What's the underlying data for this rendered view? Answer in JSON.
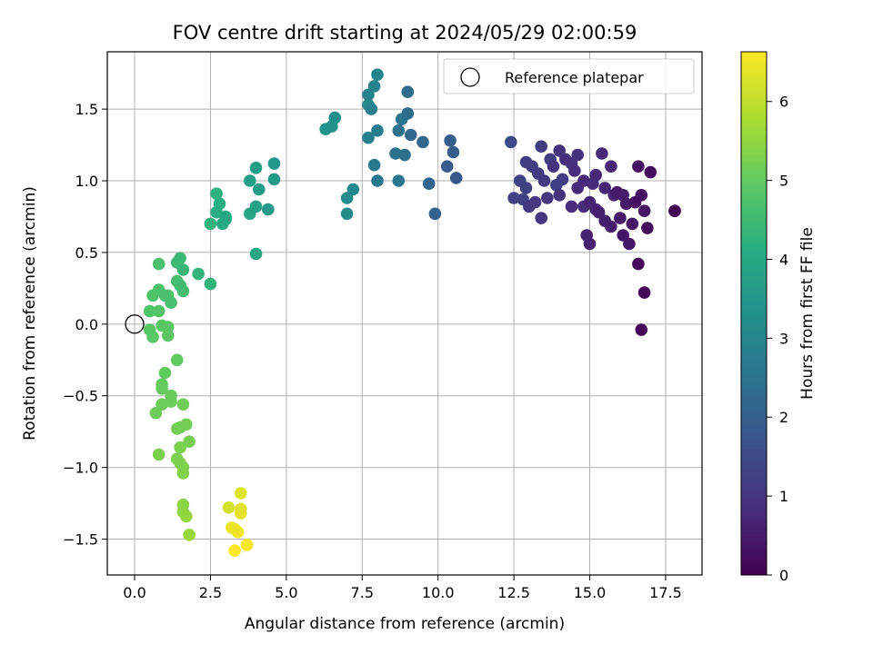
{
  "chart_data": {
    "type": "scatter",
    "title": "FOV centre drift starting at 2024/05/29 02:00:59",
    "xlabel": "Angular distance from reference (arcmin)",
    "ylabel": "Rotation from reference (arcmin)",
    "xlim": [
      -0.9,
      18.7
    ],
    "ylim": [
      -1.75,
      1.9
    ],
    "grid": true,
    "x_ticks": [
      "0.0",
      "2.5",
      "5.0",
      "7.5",
      "10.0",
      "12.5",
      "15.0",
      "17.5"
    ],
    "y_ticks": [
      "−1.5",
      "−1.0",
      "−0.5",
      "0.0",
      "0.5",
      "1.0",
      "1.5"
    ],
    "colormap": "viridis",
    "colorbar": {
      "label": "Hours from first FF file",
      "range": [
        0,
        6.63
      ],
      "ticks": [
        "0",
        "1",
        "2",
        "3",
        "4",
        "5",
        "6"
      ]
    },
    "legend": {
      "position": "top-right",
      "entries": [
        {
          "label": "Reference platepar",
          "marker": "open-circle"
        }
      ]
    },
    "reference_point": {
      "x": 0.0,
      "y": 0.0
    },
    "points": [
      {
        "x": 17.8,
        "y": 0.79,
        "h": 0.0
      },
      {
        "x": 17.8,
        "y": 0.79,
        "h": 0.05
      },
      {
        "x": 16.8,
        "y": 0.22,
        "h": 0.08
      },
      {
        "x": 16.7,
        "y": -0.04,
        "h": 0.12
      },
      {
        "x": 16.6,
        "y": 0.42,
        "h": 0.15
      },
      {
        "x": 16.9,
        "y": 0.67,
        "h": 0.2
      },
      {
        "x": 17.0,
        "y": 1.06,
        "h": 0.22
      },
      {
        "x": 16.6,
        "y": 1.1,
        "h": 0.25
      },
      {
        "x": 16.7,
        "y": 0.9,
        "h": 0.27
      },
      {
        "x": 16.5,
        "y": 0.85,
        "h": 0.3
      },
      {
        "x": 16.8,
        "y": 0.79,
        "h": 0.33
      },
      {
        "x": 16.4,
        "y": 0.7,
        "h": 0.35
      },
      {
        "x": 16.1,
        "y": 0.62,
        "h": 0.38
      },
      {
        "x": 16.3,
        "y": 0.56,
        "h": 0.4
      },
      {
        "x": 16.0,
        "y": 0.74,
        "h": 0.42
      },
      {
        "x": 16.2,
        "y": 0.84,
        "h": 0.45
      },
      {
        "x": 15.9,
        "y": 0.92,
        "h": 0.47
      },
      {
        "x": 16.1,
        "y": 0.9,
        "h": 0.5
      },
      {
        "x": 15.7,
        "y": 0.68,
        "h": 0.52
      },
      {
        "x": 15.5,
        "y": 0.72,
        "h": 0.55
      },
      {
        "x": 15.3,
        "y": 0.78,
        "h": 0.57
      },
      {
        "x": 14.9,
        "y": 0.62,
        "h": 0.6
      },
      {
        "x": 15.0,
        "y": 0.56,
        "h": 0.62
      },
      {
        "x": 15.2,
        "y": 0.8,
        "h": 0.64
      },
      {
        "x": 15.0,
        "y": 0.85,
        "h": 0.66
      },
      {
        "x": 15.8,
        "y": 0.9,
        "h": 0.68
      },
      {
        "x": 15.5,
        "y": 0.95,
        "h": 0.7
      },
      {
        "x": 15.2,
        "y": 1.04,
        "h": 0.72
      },
      {
        "x": 15.7,
        "y": 1.1,
        "h": 0.74
      },
      {
        "x": 15.4,
        "y": 1.19,
        "h": 0.76
      },
      {
        "x": 14.8,
        "y": 1.0,
        "h": 0.78
      },
      {
        "x": 14.6,
        "y": 0.95,
        "h": 0.8
      },
      {
        "x": 14.4,
        "y": 0.82,
        "h": 0.82
      },
      {
        "x": 14.8,
        "y": 0.82,
        "h": 0.84
      },
      {
        "x": 15.1,
        "y": 0.98,
        "h": 0.86
      },
      {
        "x": 14.5,
        "y": 1.07,
        "h": 0.88
      },
      {
        "x": 14.2,
        "y": 1.15,
        "h": 0.9
      },
      {
        "x": 14.6,
        "y": 1.18,
        "h": 0.92
      },
      {
        "x": 14.4,
        "y": 1.12,
        "h": 0.94
      },
      {
        "x": 14.0,
        "y": 1.21,
        "h": 0.96
      },
      {
        "x": 13.8,
        "y": 1.1,
        "h": 0.98
      },
      {
        "x": 14.0,
        "y": 0.9,
        "h": 1.0
      },
      {
        "x": 13.6,
        "y": 0.88,
        "h": 1.02
      },
      {
        "x": 13.4,
        "y": 0.74,
        "h": 1.04
      },
      {
        "x": 13.2,
        "y": 0.85,
        "h": 1.06
      },
      {
        "x": 13.0,
        "y": 0.82,
        "h": 1.08
      },
      {
        "x": 13.5,
        "y": 1.0,
        "h": 1.1
      },
      {
        "x": 13.3,
        "y": 1.05,
        "h": 1.12
      },
      {
        "x": 13.1,
        "y": 1.1,
        "h": 1.14
      },
      {
        "x": 12.9,
        "y": 1.13,
        "h": 1.16
      },
      {
        "x": 13.4,
        "y": 1.24,
        "h": 1.18
      },
      {
        "x": 13.7,
        "y": 1.15,
        "h": 1.2
      },
      {
        "x": 14.1,
        "y": 1.01,
        "h": 1.22
      },
      {
        "x": 13.9,
        "y": 0.97,
        "h": 1.24
      },
      {
        "x": 12.9,
        "y": 0.95,
        "h": 1.26
      },
      {
        "x": 12.8,
        "y": 0.87,
        "h": 1.28
      },
      {
        "x": 12.7,
        "y": 1.0,
        "h": 1.3
      },
      {
        "x": 12.5,
        "y": 0.88,
        "h": 1.32
      },
      {
        "x": 12.4,
        "y": 1.27,
        "h": 1.5
      },
      {
        "x": 10.6,
        "y": 1.02,
        "h": 1.85
      },
      {
        "x": 10.3,
        "y": 1.1,
        "h": 1.9
      },
      {
        "x": 10.5,
        "y": 1.2,
        "h": 1.95
      },
      {
        "x": 10.4,
        "y": 1.28,
        "h": 2.0
      },
      {
        "x": 9.9,
        "y": 0.77,
        "h": 2.1
      },
      {
        "x": 9.7,
        "y": 0.98,
        "h": 2.15
      },
      {
        "x": 9.5,
        "y": 1.27,
        "h": 2.2
      },
      {
        "x": 9.1,
        "y": 1.32,
        "h": 2.25
      },
      {
        "x": 9.0,
        "y": 1.47,
        "h": 2.3
      },
      {
        "x": 9.0,
        "y": 1.62,
        "h": 2.35
      },
      {
        "x": 8.9,
        "y": 1.18,
        "h": 2.4
      },
      {
        "x": 8.7,
        "y": 1.35,
        "h": 2.45
      },
      {
        "x": 8.6,
        "y": 1.19,
        "h": 2.5
      },
      {
        "x": 8.8,
        "y": 1.43,
        "h": 2.55
      },
      {
        "x": 8.7,
        "y": 1.0,
        "h": 2.6
      },
      {
        "x": 8.0,
        "y": 1.0,
        "h": 2.65
      },
      {
        "x": 7.9,
        "y": 1.11,
        "h": 2.7
      },
      {
        "x": 8.0,
        "y": 1.35,
        "h": 2.75
      },
      {
        "x": 7.7,
        "y": 1.3,
        "h": 2.8
      },
      {
        "x": 7.8,
        "y": 1.5,
        "h": 2.85
      },
      {
        "x": 7.7,
        "y": 1.6,
        "h": 2.9
      },
      {
        "x": 7.9,
        "y": 1.66,
        "h": 2.95
      },
      {
        "x": 8.0,
        "y": 1.74,
        "h": 3.0
      },
      {
        "x": 7.7,
        "y": 1.53,
        "h": 3.05
      },
      {
        "x": 7.2,
        "y": 0.94,
        "h": 3.1
      },
      {
        "x": 7.0,
        "y": 0.88,
        "h": 3.15
      },
      {
        "x": 7.0,
        "y": 0.77,
        "h": 3.2
      },
      {
        "x": 6.6,
        "y": 1.44,
        "h": 3.3
      },
      {
        "x": 6.5,
        "y": 1.38,
        "h": 3.35
      },
      {
        "x": 6.3,
        "y": 1.36,
        "h": 3.4
      },
      {
        "x": 4.6,
        "y": 1.12,
        "h": 3.5
      },
      {
        "x": 4.6,
        "y": 1.01,
        "h": 3.55
      },
      {
        "x": 4.4,
        "y": 0.8,
        "h": 3.6
      },
      {
        "x": 4.1,
        "y": 0.94,
        "h": 3.65
      },
      {
        "x": 4.0,
        "y": 1.09,
        "h": 3.7
      },
      {
        "x": 3.8,
        "y": 1.0,
        "h": 3.75
      },
      {
        "x": 4.0,
        "y": 0.82,
        "h": 3.8
      },
      {
        "x": 3.8,
        "y": 0.77,
        "h": 3.85
      },
      {
        "x": 4.0,
        "y": 0.49,
        "h": 3.9
      },
      {
        "x": 3.0,
        "y": 0.73,
        "h": 3.95
      },
      {
        "x": 2.9,
        "y": 0.7,
        "h": 4.0
      },
      {
        "x": 3.0,
        "y": 0.75,
        "h": 4.05
      },
      {
        "x": 2.7,
        "y": 0.78,
        "h": 4.1
      },
      {
        "x": 2.8,
        "y": 0.84,
        "h": 4.15
      },
      {
        "x": 2.7,
        "y": 0.91,
        "h": 4.2
      },
      {
        "x": 2.5,
        "y": 0.7,
        "h": 4.25
      },
      {
        "x": 2.5,
        "y": 0.28,
        "h": 4.3
      },
      {
        "x": 2.1,
        "y": 0.35,
        "h": 4.35
      },
      {
        "x": 1.6,
        "y": 0.38,
        "h": 4.4
      },
      {
        "x": 1.5,
        "y": 0.46,
        "h": 4.45
      },
      {
        "x": 1.4,
        "y": 0.43,
        "h": 4.5
      },
      {
        "x": 1.5,
        "y": 0.27,
        "h": 4.55
      },
      {
        "x": 1.6,
        "y": 0.23,
        "h": 4.6
      },
      {
        "x": 1.4,
        "y": 0.3,
        "h": 4.62
      },
      {
        "x": 1.2,
        "y": 0.15,
        "h": 4.65
      },
      {
        "x": 1.0,
        "y": 0.2,
        "h": 4.68
      },
      {
        "x": 0.8,
        "y": 0.42,
        "h": 4.7
      },
      {
        "x": 0.8,
        "y": 0.24,
        "h": 4.72
      },
      {
        "x": 0.6,
        "y": 0.2,
        "h": 4.75
      },
      {
        "x": 0.5,
        "y": 0.09,
        "h": 4.78
      },
      {
        "x": 0.8,
        "y": 0.09,
        "h": 4.8
      },
      {
        "x": 1.1,
        "y": 0.2,
        "h": 4.82
      },
      {
        "x": 0.5,
        "y": -0.04,
        "h": 4.85
      },
      {
        "x": 0.6,
        "y": -0.09,
        "h": 4.88
      },
      {
        "x": 0.9,
        "y": -0.01,
        "h": 4.9
      },
      {
        "x": 1.1,
        "y": -0.02,
        "h": 4.92
      },
      {
        "x": 1.1,
        "y": -0.08,
        "h": 4.95
      },
      {
        "x": 1.4,
        "y": -0.25,
        "h": 4.98
      },
      {
        "x": 1.0,
        "y": -0.34,
        "h": 5.0
      },
      {
        "x": 0.9,
        "y": -0.42,
        "h": 5.03
      },
      {
        "x": 0.9,
        "y": -0.45,
        "h": 5.06
      },
      {
        "x": 1.2,
        "y": -0.5,
        "h": 5.08
      },
      {
        "x": 1.2,
        "y": -0.54,
        "h": 5.1
      },
      {
        "x": 0.9,
        "y": -0.56,
        "h": 5.12
      },
      {
        "x": 0.7,
        "y": -0.62,
        "h": 5.14
      },
      {
        "x": 1.6,
        "y": -0.56,
        "h": 5.16
      },
      {
        "x": 1.5,
        "y": -0.72,
        "h": 5.18
      },
      {
        "x": 1.7,
        "y": -0.7,
        "h": 5.2
      },
      {
        "x": 1.4,
        "y": -0.73,
        "h": 5.22
      },
      {
        "x": 1.8,
        "y": -0.82,
        "h": 5.24
      },
      {
        "x": 1.5,
        "y": -0.86,
        "h": 5.26
      },
      {
        "x": 0.8,
        "y": -0.91,
        "h": 5.28
      },
      {
        "x": 1.4,
        "y": -0.94,
        "h": 5.3
      },
      {
        "x": 1.5,
        "y": -0.97,
        "h": 5.32
      },
      {
        "x": 1.6,
        "y": -1.0,
        "h": 5.34
      },
      {
        "x": 1.6,
        "y": -1.04,
        "h": 5.36
      },
      {
        "x": 1.6,
        "y": -1.26,
        "h": 5.45
      },
      {
        "x": 1.6,
        "y": -1.31,
        "h": 5.5
      },
      {
        "x": 1.7,
        "y": -1.34,
        "h": 5.55
      },
      {
        "x": 1.8,
        "y": -1.47,
        "h": 5.6
      },
      {
        "x": 3.1,
        "y": -1.28,
        "h": 6.2
      },
      {
        "x": 3.5,
        "y": -1.18,
        "h": 6.3
      },
      {
        "x": 3.5,
        "y": -1.29,
        "h": 6.35
      },
      {
        "x": 3.5,
        "y": -1.32,
        "h": 6.4
      },
      {
        "x": 3.2,
        "y": -1.42,
        "h": 6.45
      },
      {
        "x": 3.3,
        "y": -1.43,
        "h": 6.5
      },
      {
        "x": 3.4,
        "y": -1.45,
        "h": 6.53
      },
      {
        "x": 3.7,
        "y": -1.54,
        "h": 6.56
      },
      {
        "x": 3.3,
        "y": -1.58,
        "h": 6.6
      }
    ]
  }
}
